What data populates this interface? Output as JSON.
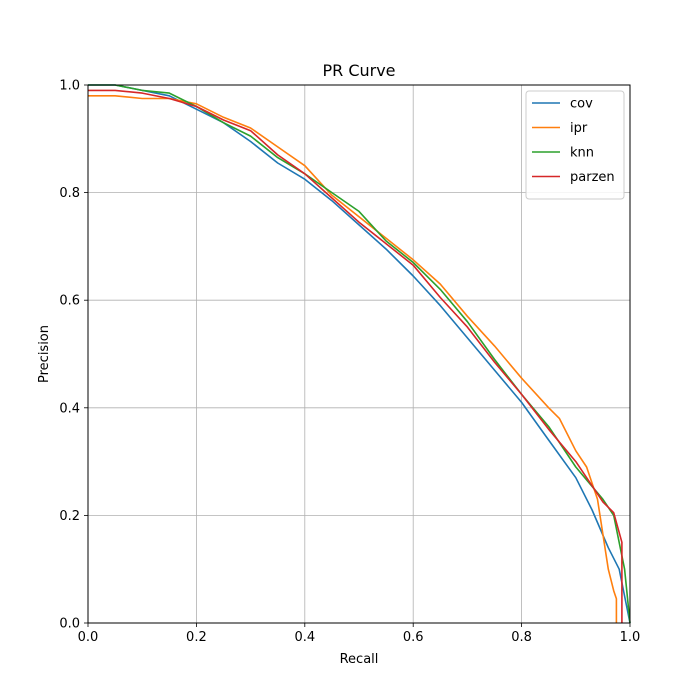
{
  "chart_data": {
    "type": "line",
    "title": "PR Curve",
    "xlabel": "Recall",
    "ylabel": "Precision",
    "xlim": [
      0,
      1
    ],
    "ylim": [
      0,
      1
    ],
    "xticks": [
      "0.0",
      "0.2",
      "0.4",
      "0.6",
      "0.8",
      "1.0"
    ],
    "yticks": [
      "0.0",
      "0.2",
      "0.4",
      "0.6",
      "0.8",
      "1.0"
    ],
    "grid": true,
    "legend_position": "top-right",
    "series": [
      {
        "name": "cov",
        "color": "#1f77b4",
        "points": [
          [
            0.0,
            1.0
          ],
          [
            0.05,
            1.0
          ],
          [
            0.1,
            0.99
          ],
          [
            0.15,
            0.98
          ],
          [
            0.2,
            0.955
          ],
          [
            0.25,
            0.93
          ],
          [
            0.3,
            0.895
          ],
          [
            0.35,
            0.855
          ],
          [
            0.4,
            0.825
          ],
          [
            0.45,
            0.785
          ],
          [
            0.5,
            0.74
          ],
          [
            0.55,
            0.695
          ],
          [
            0.6,
            0.645
          ],
          [
            0.65,
            0.59
          ],
          [
            0.7,
            0.53
          ],
          [
            0.75,
            0.47
          ],
          [
            0.8,
            0.41
          ],
          [
            0.85,
            0.34
          ],
          [
            0.9,
            0.27
          ],
          [
            0.93,
            0.21
          ],
          [
            0.96,
            0.14
          ],
          [
            0.98,
            0.1
          ],
          [
            0.99,
            0.05
          ],
          [
            1.0,
            0.0
          ]
        ]
      },
      {
        "name": "ipr",
        "color": "#ff7f0e",
        "points": [
          [
            0.0,
            0.98
          ],
          [
            0.05,
            0.98
          ],
          [
            0.1,
            0.975
          ],
          [
            0.15,
            0.975
          ],
          [
            0.2,
            0.965
          ],
          [
            0.25,
            0.94
          ],
          [
            0.3,
            0.92
          ],
          [
            0.35,
            0.885
          ],
          [
            0.4,
            0.85
          ],
          [
            0.45,
            0.795
          ],
          [
            0.5,
            0.755
          ],
          [
            0.55,
            0.715
          ],
          [
            0.6,
            0.675
          ],
          [
            0.65,
            0.63
          ],
          [
            0.7,
            0.57
          ],
          [
            0.75,
            0.515
          ],
          [
            0.8,
            0.455
          ],
          [
            0.85,
            0.4
          ],
          [
            0.87,
            0.38
          ],
          [
            0.9,
            0.32
          ],
          [
            0.92,
            0.29
          ],
          [
            0.94,
            0.23
          ],
          [
            0.96,
            0.1
          ],
          [
            0.97,
            0.06
          ],
          [
            0.975,
            0.045
          ],
          [
            0.975,
            0.0
          ]
        ]
      },
      {
        "name": "knn",
        "color": "#2ca02c",
        "points": [
          [
            0.0,
            1.0
          ],
          [
            0.05,
            1.0
          ],
          [
            0.1,
            0.99
          ],
          [
            0.15,
            0.985
          ],
          [
            0.2,
            0.96
          ],
          [
            0.25,
            0.93
          ],
          [
            0.3,
            0.905
          ],
          [
            0.35,
            0.865
          ],
          [
            0.4,
            0.835
          ],
          [
            0.45,
            0.8
          ],
          [
            0.5,
            0.765
          ],
          [
            0.55,
            0.71
          ],
          [
            0.6,
            0.67
          ],
          [
            0.65,
            0.62
          ],
          [
            0.7,
            0.56
          ],
          [
            0.75,
            0.49
          ],
          [
            0.8,
            0.425
          ],
          [
            0.85,
            0.365
          ],
          [
            0.9,
            0.29
          ],
          [
            0.95,
            0.23
          ],
          [
            0.97,
            0.2
          ],
          [
            0.99,
            0.1
          ],
          [
            1.0,
            0.0
          ]
        ]
      },
      {
        "name": "parzen",
        "color": "#d62728",
        "points": [
          [
            0.0,
            0.99
          ],
          [
            0.05,
            0.99
          ],
          [
            0.1,
            0.985
          ],
          [
            0.15,
            0.975
          ],
          [
            0.2,
            0.96
          ],
          [
            0.25,
            0.935
          ],
          [
            0.3,
            0.915
          ],
          [
            0.35,
            0.87
          ],
          [
            0.4,
            0.835
          ],
          [
            0.45,
            0.79
          ],
          [
            0.5,
            0.745
          ],
          [
            0.55,
            0.705
          ],
          [
            0.6,
            0.665
          ],
          [
            0.65,
            0.605
          ],
          [
            0.7,
            0.55
          ],
          [
            0.75,
            0.485
          ],
          [
            0.8,
            0.425
          ],
          [
            0.85,
            0.36
          ],
          [
            0.9,
            0.3
          ],
          [
            0.93,
            0.255
          ],
          [
            0.95,
            0.225
          ],
          [
            0.97,
            0.205
          ],
          [
            0.985,
            0.15
          ],
          [
            0.985,
            0.0
          ]
        ]
      }
    ]
  }
}
